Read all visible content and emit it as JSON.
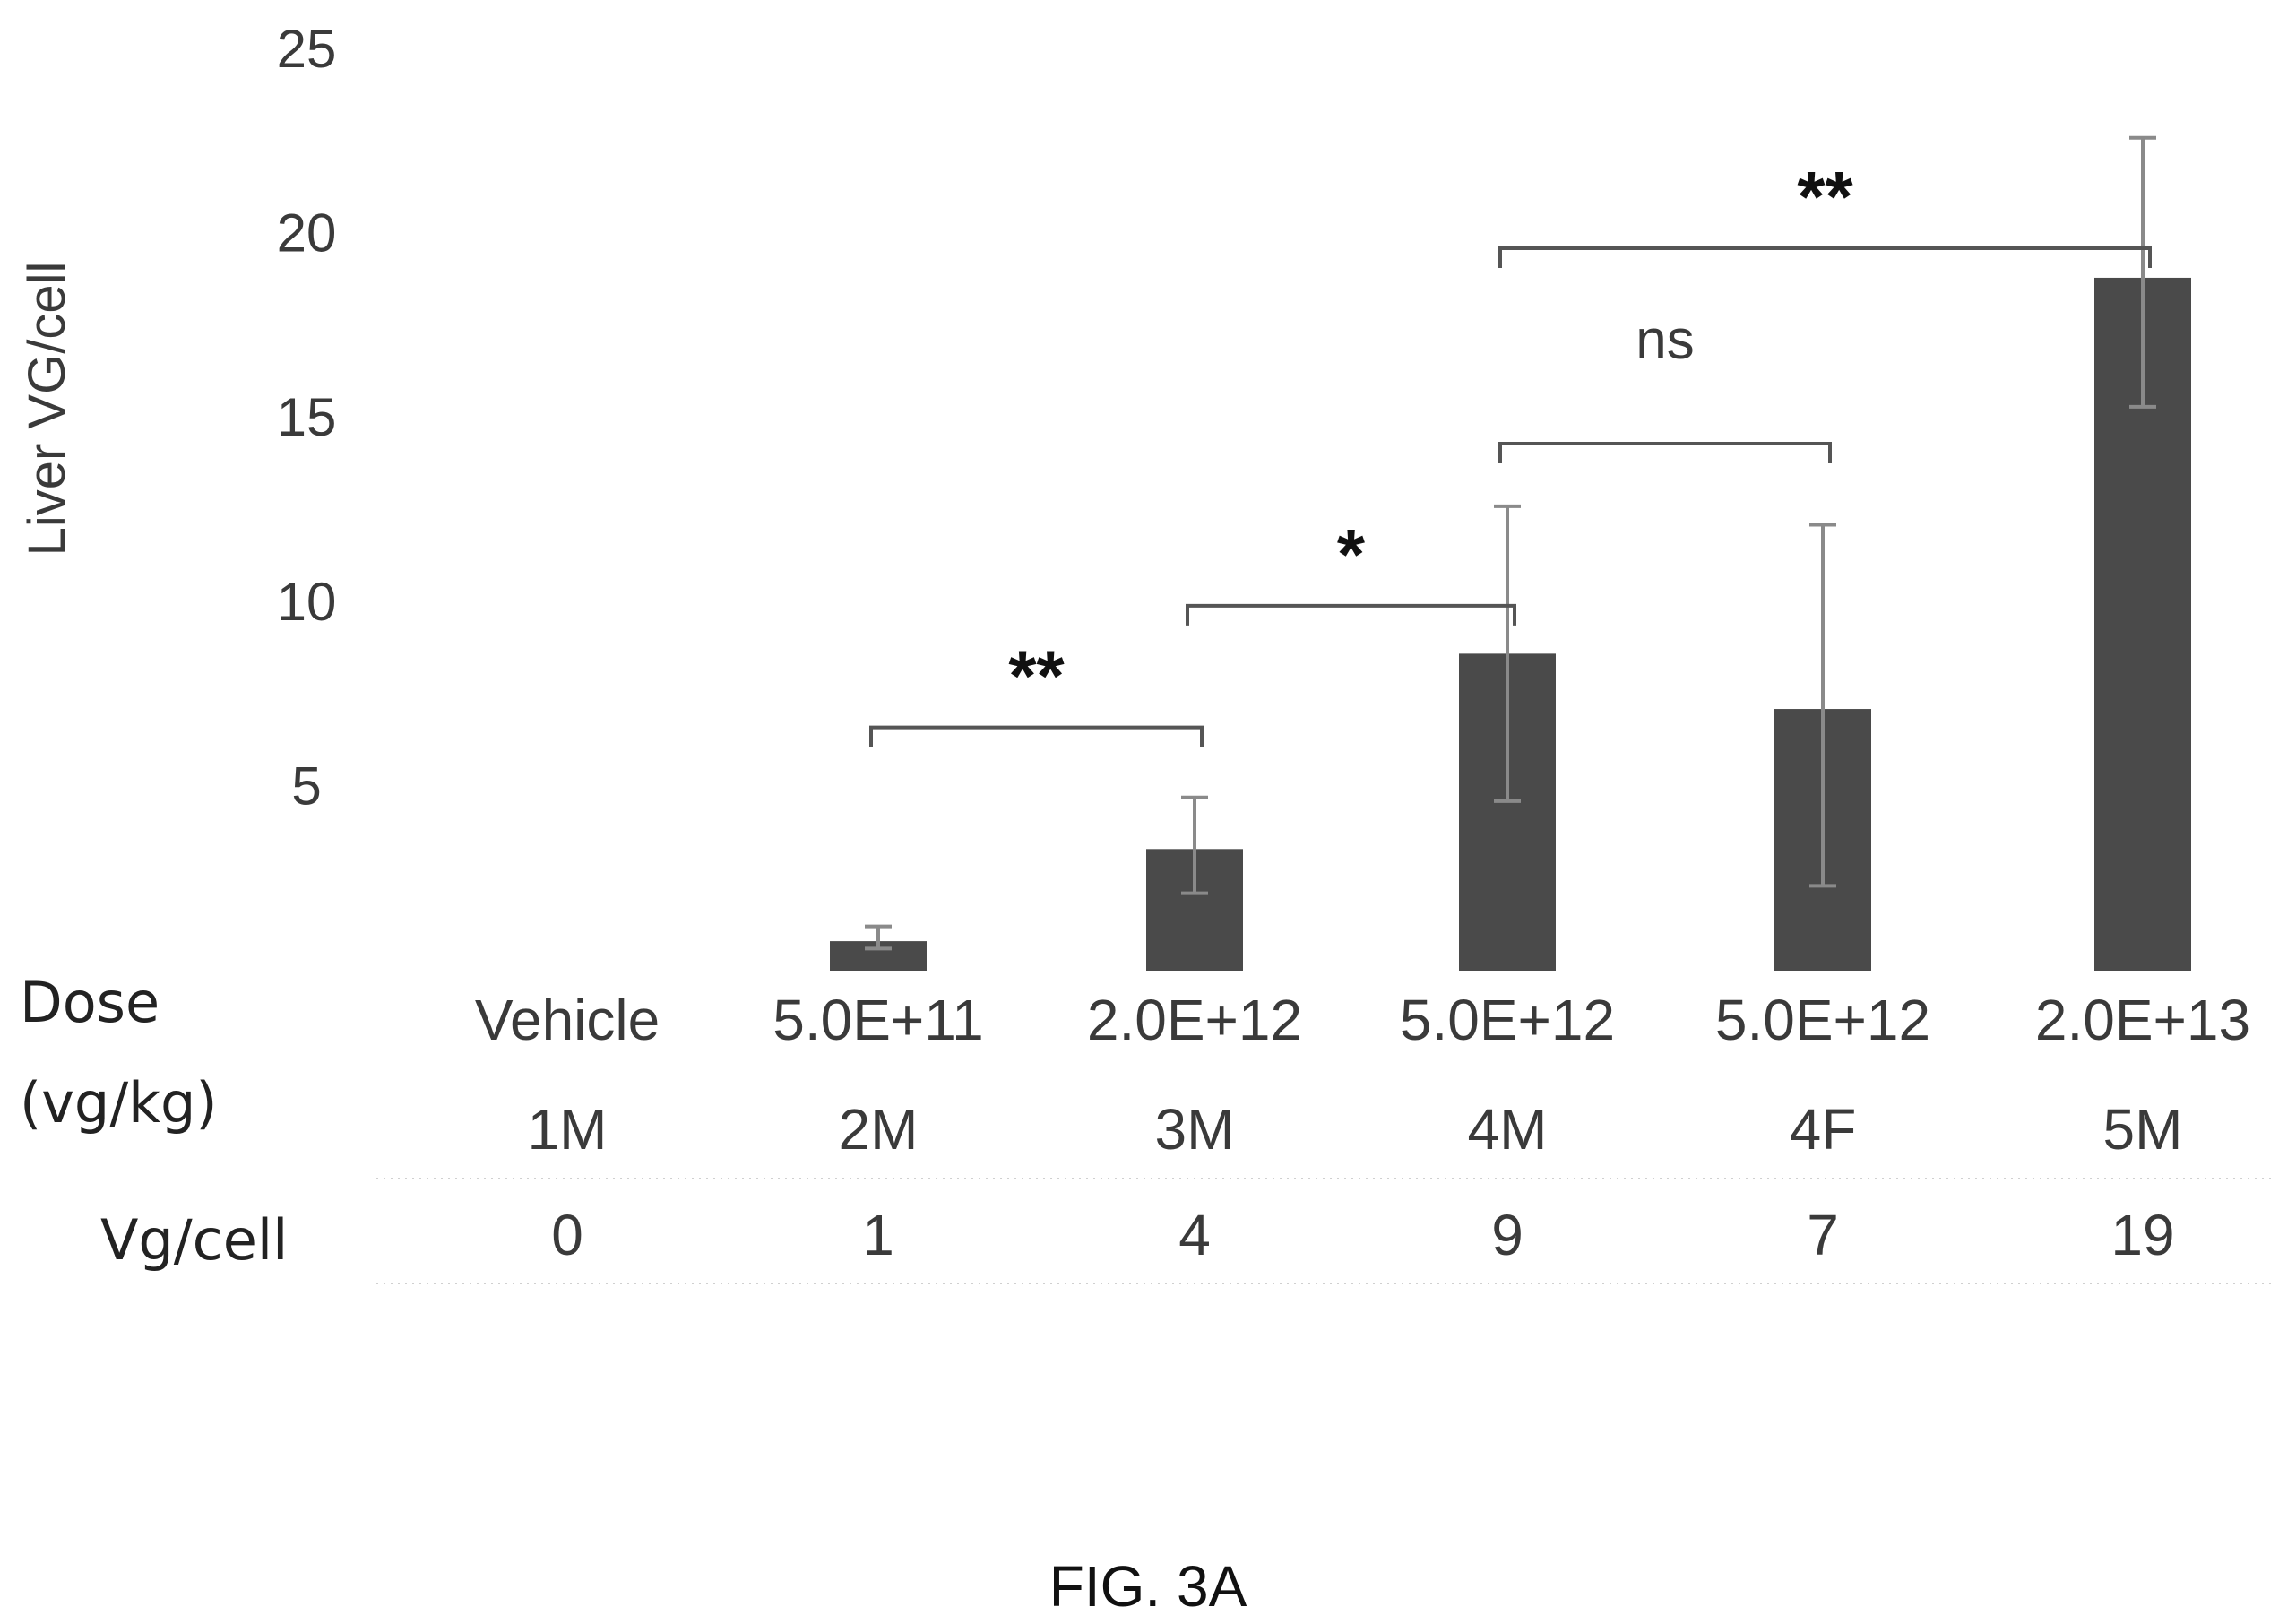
{
  "chart_data": {
    "type": "bar",
    "ylabel": "Liver VG/cell",
    "ylim": [
      0,
      25
    ],
    "yticks": [
      5,
      10,
      15,
      20,
      25
    ],
    "grid": false,
    "categories": [
      "Vehicle",
      "5.0E+11",
      "2.0E+12",
      "5.0E+12",
      "5.0E+12",
      "2.0E+13"
    ],
    "groups": [
      "1M",
      "2M",
      "3M",
      "4M",
      "4F",
      "5M"
    ],
    "values": [
      0,
      0.8,
      3.3,
      8.6,
      7.1,
      18.8
    ],
    "error_low": [
      0,
      0.6,
      2.1,
      4.6,
      2.3,
      15.3
    ],
    "error_high": [
      0,
      1.2,
      4.7,
      12.6,
      12.1,
      22.6
    ],
    "vg_per_cell": [
      "0",
      "1",
      "4",
      "9",
      "7",
      "19"
    ],
    "dose_label": "Dose",
    "dose_unit": "(vg/kg)",
    "vg_row_label": "Vg/cell",
    "significance": [
      {
        "from": 1,
        "to": 2,
        "label": "**",
        "level": 6.6
      },
      {
        "from": 2,
        "to": 3,
        "label": "*",
        "level": 9.9
      },
      {
        "from": 3,
        "to": 4,
        "label": "ns",
        "level": 14.3
      },
      {
        "from": 3,
        "to": 5,
        "label": "**",
        "level": 19.6
      }
    ],
    "bar_color": "#4a4a4a",
    "error_color": "#8a8a8a"
  },
  "figure_label": "FIG. 3A"
}
